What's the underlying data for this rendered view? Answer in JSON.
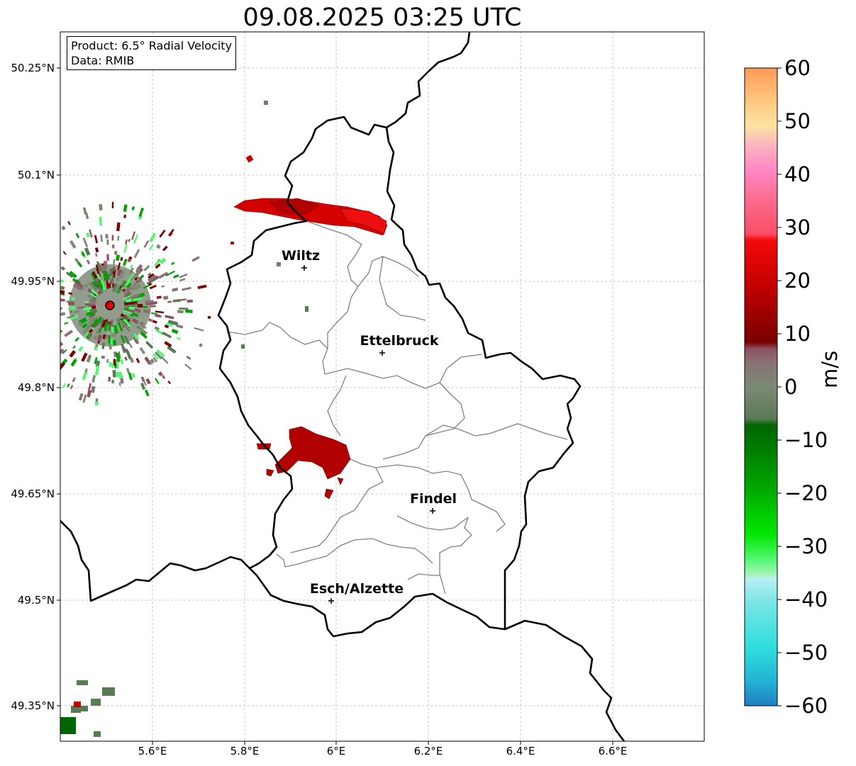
{
  "title": "09.08.2025 03:25 UTC",
  "info": {
    "product": "Product: 6.5° Radial Velocity",
    "data_source": "Data: RMIB"
  },
  "axes": {
    "y_ticks": [
      "50.25°N",
      "50.1°N",
      "49.95°N",
      "49.8°N",
      "49.65°N",
      "49.5°N",
      "49.35°N"
    ],
    "x_ticks": [
      "5.6°E",
      "5.8°E",
      "6°E",
      "6.2°E",
      "6.4°E",
      "6.6°E"
    ]
  },
  "cities": [
    {
      "name": "Wiltz",
      "lon": 5.93,
      "lat": 49.97
    },
    {
      "name": "Ettelbruck",
      "lon": 6.1,
      "lat": 49.85
    },
    {
      "name": "Findel",
      "lon": 6.21,
      "lat": 49.63
    },
    {
      "name": "Esch/Alzette",
      "lon": 5.99,
      "lat": 49.5
    }
  ],
  "radar_site": {
    "lon": 5.51,
    "lat": 49.915
  },
  "colorbar": {
    "label": "m/s",
    "range": [
      -60,
      60
    ],
    "ticks": [
      "60",
      "50",
      "40",
      "30",
      "20",
      "10",
      "0",
      "−10",
      "−20",
      "−30",
      "−40",
      "−50",
      "−60"
    ],
    "colors": {
      "c60": "#fe9a55",
      "c50": "#fec680",
      "c45": "#fde4a0",
      "c42": "#fcb6bf",
      "c40": "#fd88c6",
      "c35": "#fb6a8a",
      "c30": "#fa4c66",
      "c27": "#f40a0a",
      "c20": "#c40000",
      "c12": "#7a0000",
      "c8": "#8a5060",
      "c3": "#8a7075",
      "c0": "#7c8a74",
      "cn5": "#5a7a55",
      "cn8": "#006400",
      "cn15": "#00a000",
      "cn25": "#00e600",
      "cn30": "#50f870",
      "cn35": "#a8f4b8",
      "cn38": "#b8f0f4",
      "cn45": "#78e4e4",
      "cn50": "#2edede",
      "cn55": "#22b4d4",
      "cn60": "#1f7fc4"
    }
  }
}
